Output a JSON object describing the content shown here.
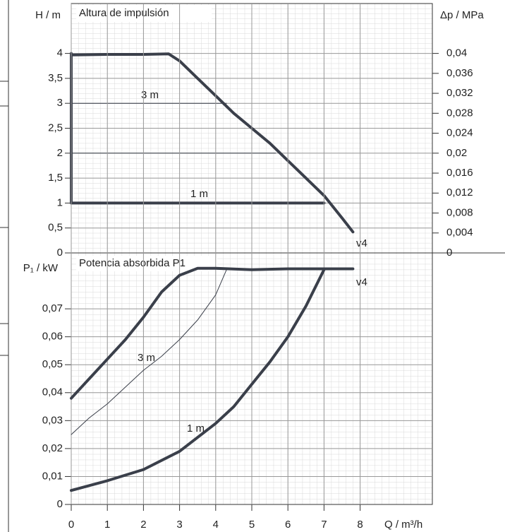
{
  "chart_data": [
    {
      "type": "line",
      "title": "Altura de impulsión",
      "ylabel": "H / m",
      "y2label": "Δp / MPa",
      "xlim": [
        0,
        10
      ],
      "ylim": [
        0,
        5
      ],
      "yticks": [
        0,
        {
          "value": 0.5,
          "label": "0,5"
        },
        1,
        {
          "value": 1.5,
          "label": "1,5"
        },
        2,
        {
          "value": 2.5,
          "label": "2,5"
        },
        3,
        {
          "value": 3.5,
          "label": "3,5"
        },
        4
      ],
      "y2lim": [
        0,
        0.05
      ],
      "y2ticks": [
        0,
        {
          "value": 0.004,
          "label": "0,004"
        },
        {
          "value": 0.008,
          "label": "0,008"
        },
        {
          "value": 0.012,
          "label": "0,012"
        },
        {
          "value": 0.016,
          "label": "0,016"
        },
        {
          "value": 0.02,
          "label": "0,02"
        },
        {
          "value": 0.024,
          "label": "0,024"
        },
        {
          "value": 0.028,
          "label": "0,028"
        },
        {
          "value": 0.032,
          "label": "0,032"
        },
        {
          "value": 0.036,
          "label": "0,036"
        },
        {
          "value": 0.04,
          "label": "0,04"
        }
      ],
      "grid": true,
      "series": [
        {
          "name": "v4",
          "color": "#3a3f4a",
          "linewidth": 4,
          "x": [
            0,
            1,
            2,
            2.7,
            3,
            3.5,
            4,
            4.5,
            5,
            5.5,
            6,
            6.5,
            7,
            7.5,
            7.8
          ],
          "values": [
            3.97,
            3.98,
            3.98,
            3.99,
            3.85,
            3.5,
            3.15,
            2.8,
            2.5,
            2.2,
            1.85,
            1.5,
            1.15,
            0.7,
            0.42
          ]
        },
        {
          "name": "3 m",
          "color": "#3a3f4a",
          "linewidth": 1,
          "x": [
            0,
            4.3
          ],
          "values": [
            3,
            3
          ]
        },
        {
          "color": "#3a3f4a",
          "linewidth": 1,
          "x": [
            0,
            5.66
          ],
          "values": [
            2,
            2
          ]
        },
        {
          "name": "1 m",
          "color": "#3a3f4a",
          "linewidth": 4,
          "x": [
            0,
            0,
            7
          ],
          "values": [
            4,
            1,
            1
          ]
        }
      ]
    },
    {
      "type": "line",
      "title": "Potencia absorbida P1",
      "ylabel": "P₁ / kW",
      "xlabel": "Q / m³/h",
      "xlim": [
        0,
        10
      ],
      "xticks": [
        0,
        1,
        2,
        3,
        4,
        5,
        6,
        7,
        8
      ],
      "ylim": [
        0,
        0.09
      ],
      "yticks": [
        0,
        {
          "value": 0.01,
          "label": "0,01"
        },
        {
          "value": 0.02,
          "label": "0,02"
        },
        {
          "value": 0.03,
          "label": "0,03"
        },
        {
          "value": 0.04,
          "label": "0,04"
        },
        {
          "value": 0.05,
          "label": "0,05"
        },
        {
          "value": 0.06,
          "label": "0,06"
        },
        {
          "value": 0.07,
          "label": "0,07"
        }
      ],
      "grid": true,
      "series": [
        {
          "name": "v4",
          "color": "#3a3f4a",
          "linewidth": 4,
          "x": [
            0,
            0.5,
            1,
            1.5,
            2,
            2.5,
            3,
            3.5,
            4,
            5,
            6,
            7,
            7.8
          ],
          "values": [
            0.038,
            0.045,
            0.052,
            0.059,
            0.067,
            0.076,
            0.082,
            0.0845,
            0.0845,
            0.084,
            0.0843,
            0.0843,
            0.0843
          ]
        },
        {
          "name": "3 m",
          "color": "#3a3f4a",
          "linewidth": 1,
          "x": [
            0,
            0.5,
            1,
            1.5,
            2,
            2.5,
            3,
            3.5,
            4,
            4.3
          ],
          "values": [
            0.025,
            0.031,
            0.036,
            0.042,
            0.048,
            0.053,
            0.059,
            0.066,
            0.075,
            0.084
          ]
        },
        {
          "name": "1 m",
          "color": "#3a3f4a",
          "linewidth": 4,
          "x": [
            0,
            1,
            2,
            3,
            4,
            4.5,
            5,
            5.5,
            6,
            6.5,
            7
          ],
          "values": [
            0.005,
            0.0085,
            0.0125,
            0.019,
            0.029,
            0.035,
            0.043,
            0.051,
            0.06,
            0.071,
            0.084
          ]
        }
      ]
    }
  ]
}
